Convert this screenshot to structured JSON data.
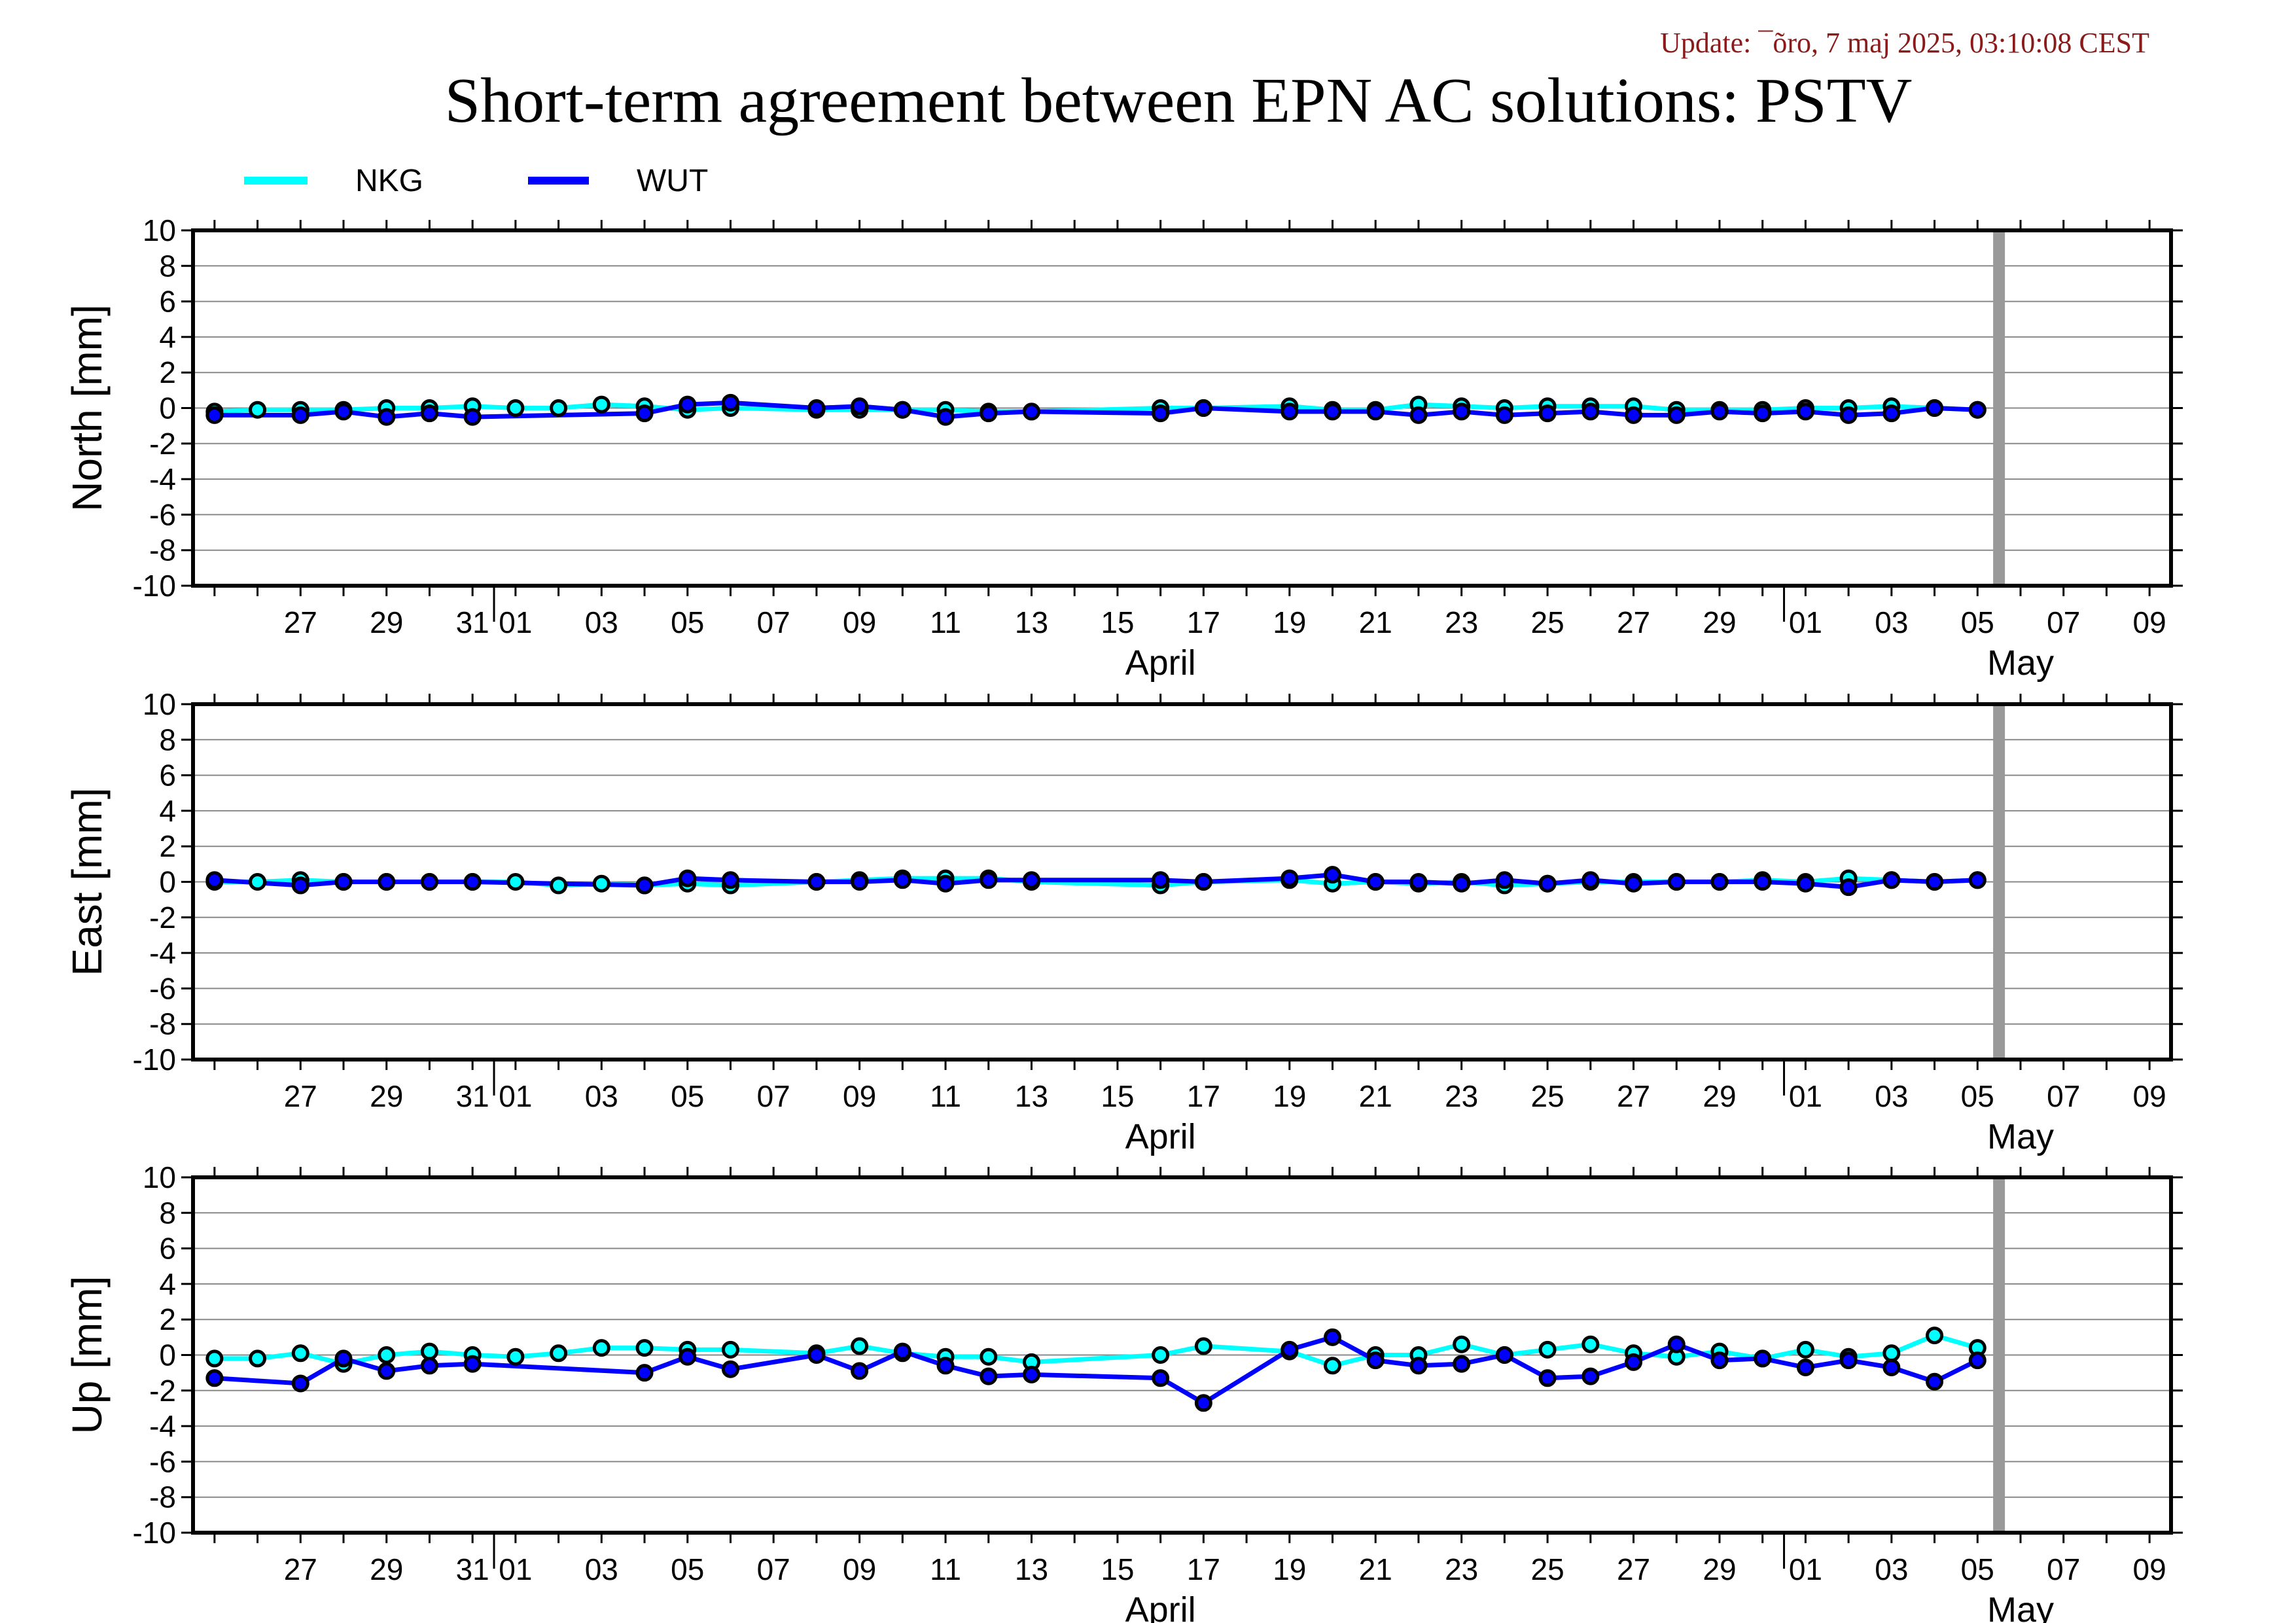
{
  "header": {
    "update": "Update: ¯õro, 7 maj 2025, 03:10:08 CEST",
    "title": "Short-term agreement between EPN AC solutions: PSTV"
  },
  "legend": [
    {
      "name": "NKG",
      "color": "#00ffff"
    },
    {
      "name": "WUT",
      "color": "#0000ff"
    }
  ],
  "x_axis": {
    "range_days": [
      -6.5,
      39.5
    ],
    "date_ticks": [
      {
        "d": -4,
        "label": "27"
      },
      {
        "d": -2,
        "label": "29"
      },
      {
        "d": 0,
        "label": "31"
      },
      {
        "d": 1,
        "label": "01"
      },
      {
        "d": 3,
        "label": "03"
      },
      {
        "d": 5,
        "label": "05"
      },
      {
        "d": 7,
        "label": "07"
      },
      {
        "d": 9,
        "label": "09"
      },
      {
        "d": 11,
        "label": "11"
      },
      {
        "d": 13,
        "label": "13"
      },
      {
        "d": 15,
        "label": "15"
      },
      {
        "d": 17,
        "label": "17"
      },
      {
        "d": 19,
        "label": "19"
      },
      {
        "d": 21,
        "label": "21"
      },
      {
        "d": 23,
        "label": "23"
      },
      {
        "d": 25,
        "label": "25"
      },
      {
        "d": 27,
        "label": "27"
      },
      {
        "d": 29,
        "label": "29"
      },
      {
        "d": 31,
        "label": "01"
      },
      {
        "d": 33,
        "label": "03"
      },
      {
        "d": 35,
        "label": "05"
      },
      {
        "d": 37,
        "label": "07"
      },
      {
        "d": 39,
        "label": "09"
      }
    ],
    "months": [
      {
        "d": 16,
        "label": "April"
      },
      {
        "d": 36,
        "label": "May"
      }
    ],
    "month_boundaries": [
      0.5,
      30.5
    ],
    "current_day_marker": 35.5
  },
  "chart_data": [
    {
      "type": "line",
      "ylabel": "North [mm]",
      "ylim": [
        -10,
        10
      ],
      "yticks": [
        10,
        8,
        6,
        4,
        2,
        0,
        -2,
        -4,
        -6,
        -8,
        -10
      ],
      "series": [
        {
          "name": "NKG",
          "x": [
            -6,
            -5,
            -4,
            -3,
            -2,
            -1,
            0,
            1,
            2,
            3,
            4,
            5,
            6,
            8,
            9,
            10,
            11,
            12,
            13,
            16,
            17,
            19,
            20,
            21,
            22,
            23,
            24,
            25,
            26,
            27,
            28,
            29,
            30,
            31,
            32,
            33,
            34,
            35
          ],
          "y": [
            -0.2,
            -0.1,
            -0.1,
            -0.1,
            0.0,
            0.0,
            0.1,
            0.0,
            0.0,
            0.2,
            0.1,
            -0.1,
            0.0,
            -0.1,
            -0.1,
            -0.1,
            -0.1,
            -0.2,
            -0.2,
            0.0,
            0.0,
            0.1,
            -0.1,
            -0.1,
            0.2,
            0.1,
            0.0,
            0.1,
            0.1,
            0.1,
            -0.1,
            -0.1,
            -0.1,
            0.0,
            0.0,
            0.1,
            0.0,
            -0.1
          ]
        },
        {
          "name": "WUT",
          "x": [
            -6,
            -4,
            -3,
            -2,
            -1,
            0,
            4,
            5,
            6,
            8,
            9,
            10,
            11,
            12,
            13,
            16,
            17,
            19,
            20,
            21,
            22,
            23,
            24,
            25,
            26,
            27,
            28,
            29,
            30,
            31,
            32,
            33,
            34,
            35
          ],
          "y": [
            -0.4,
            -0.4,
            -0.2,
            -0.5,
            -0.3,
            -0.5,
            -0.3,
            0.2,
            0.3,
            0.0,
            0.1,
            -0.1,
            -0.5,
            -0.3,
            -0.2,
            -0.3,
            0.0,
            -0.2,
            -0.2,
            -0.2,
            -0.4,
            -0.2,
            -0.4,
            -0.3,
            -0.2,
            -0.4,
            -0.4,
            -0.2,
            -0.3,
            -0.2,
            -0.4,
            -0.3,
            0.0,
            -0.1
          ]
        }
      ]
    },
    {
      "type": "line",
      "ylabel": "East [mm]",
      "ylim": [
        -10,
        10
      ],
      "yticks": [
        10,
        8,
        6,
        4,
        2,
        0,
        -2,
        -4,
        -6,
        -8,
        -10
      ],
      "series": [
        {
          "name": "NKG",
          "x": [
            -6,
            -5,
            -4,
            -3,
            -2,
            -1,
            0,
            1,
            2,
            3,
            4,
            5,
            6,
            8,
            9,
            10,
            11,
            12,
            13,
            16,
            17,
            19,
            20,
            21,
            22,
            23,
            24,
            25,
            26,
            27,
            28,
            29,
            30,
            31,
            32,
            33,
            34,
            35
          ],
          "y": [
            0.0,
            0.0,
            0.1,
            0.0,
            0.0,
            0.0,
            0.0,
            0.0,
            -0.2,
            -0.1,
            -0.2,
            -0.1,
            -0.2,
            0.0,
            0.1,
            0.2,
            0.2,
            0.2,
            0.0,
            -0.2,
            0.0,
            0.1,
            -0.1,
            0.0,
            -0.1,
            0.0,
            -0.2,
            -0.1,
            0.0,
            0.0,
            0.0,
            0.0,
            0.1,
            0.0,
            0.2,
            0.1,
            0.0,
            0.1
          ]
        },
        {
          "name": "WUT",
          "x": [
            -6,
            -4,
            -3,
            -2,
            -1,
            0,
            4,
            5,
            6,
            8,
            9,
            10,
            11,
            12,
            13,
            16,
            17,
            19,
            20,
            21,
            22,
            23,
            24,
            25,
            26,
            27,
            28,
            29,
            30,
            31,
            32,
            33,
            34,
            35
          ],
          "y": [
            0.1,
            -0.2,
            0.0,
            0.0,
            0.0,
            0.0,
            -0.2,
            0.2,
            0.1,
            0.0,
            0.0,
            0.1,
            -0.1,
            0.1,
            0.1,
            0.1,
            0.0,
            0.2,
            0.4,
            0.0,
            0.0,
            -0.1,
            0.1,
            -0.1,
            0.1,
            -0.1,
            0.0,
            0.0,
            0.0,
            -0.1,
            -0.3,
            0.1,
            0.0,
            0.1
          ]
        }
      ]
    },
    {
      "type": "line",
      "ylabel": "Up [mm]",
      "ylim": [
        -10,
        10
      ],
      "yticks": [
        10,
        8,
        6,
        4,
        2,
        0,
        -2,
        -4,
        -6,
        -8,
        -10
      ],
      "series": [
        {
          "name": "NKG",
          "x": [
            -6,
            -5,
            -4,
            -3,
            -2,
            -1,
            0,
            1,
            2,
            3,
            4,
            5,
            6,
            8,
            9,
            10,
            11,
            12,
            13,
            16,
            17,
            19,
            20,
            21,
            22,
            23,
            24,
            25,
            26,
            27,
            28,
            29,
            30,
            31,
            32,
            33,
            34,
            35
          ],
          "y": [
            -0.2,
            -0.2,
            0.1,
            -0.5,
            0.0,
            0.2,
            0.0,
            -0.1,
            0.1,
            0.4,
            0.4,
            0.3,
            0.3,
            0.1,
            0.5,
            0.1,
            -0.1,
            -0.1,
            -0.4,
            0.0,
            0.5,
            0.2,
            -0.6,
            0.0,
            0.0,
            0.6,
            0.0,
            0.3,
            0.6,
            0.1,
            -0.1,
            0.2,
            -0.2,
            0.3,
            -0.1,
            0.1,
            1.1,
            0.4
          ]
        },
        {
          "name": "WUT",
          "x": [
            -6,
            -4,
            -3,
            -2,
            -1,
            0,
            4,
            5,
            6,
            8,
            9,
            10,
            11,
            12,
            13,
            16,
            17,
            19,
            20,
            21,
            22,
            23,
            24,
            25,
            26,
            27,
            28,
            29,
            30,
            31,
            32,
            33,
            34,
            35
          ],
          "y": [
            -1.3,
            -1.6,
            -0.2,
            -0.9,
            -0.6,
            -0.5,
            -1.0,
            -0.1,
            -0.8,
            0.0,
            -0.9,
            0.2,
            -0.6,
            -1.2,
            -1.1,
            -1.3,
            -2.7,
            0.3,
            1.0,
            -0.3,
            -0.6,
            -0.5,
            0.0,
            -1.3,
            -1.2,
            -0.4,
            0.6,
            -0.3,
            -0.2,
            -0.7,
            -0.3,
            -0.7,
            -1.5,
            -0.3
          ]
        }
      ]
    }
  ]
}
